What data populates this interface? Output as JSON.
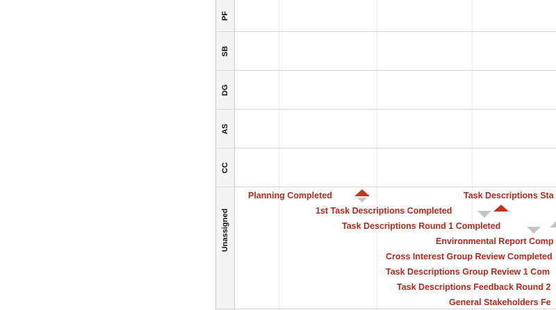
{
  "rows": [
    "PF",
    "SB",
    "DG",
    "AS",
    "CC",
    "Unassigned"
  ],
  "milestones": [
    "Planning Completed",
    "Task Descriptions Sta",
    "1st Task Descriptions Completed",
    "Task Descriptions Round 1 Completed",
    "Environmental Report Comp",
    "Cross Interest Group Review Completed",
    "Task Descriptions Group Review 1 Com",
    "Task Descriptions Feedback Round 2",
    "General Stakeholders Fe"
  ],
  "colors": {
    "milestone_text": "#b22a1c",
    "marker_red": "#c8311f",
    "marker_gray": "#c4c4c4",
    "header_bg": "#f4f4f4"
  }
}
